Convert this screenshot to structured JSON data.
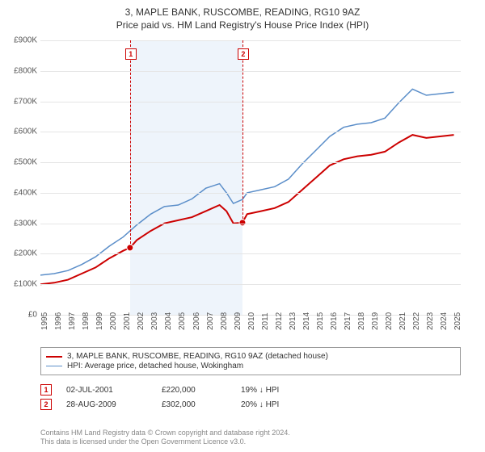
{
  "title": {
    "line1": "3, MAPLE BANK, RUSCOMBE, READING, RG10 9AZ",
    "line2": "Price paid vs. HM Land Registry's House Price Index (HPI)"
  },
  "chart": {
    "type": "line",
    "background_color": "#ffffff",
    "grid_color": "#e5e5e5",
    "highlight_band_color": "#eef4fb",
    "highlight_band_xstart": 2001.5,
    "highlight_band_xend": 2009.66,
    "xlim": [
      1995,
      2025.5
    ],
    "ylim": [
      0,
      900000
    ],
    "ytick_step": 100000,
    "ytick_labels": [
      "£0",
      "£100K",
      "£200K",
      "£300K",
      "£400K",
      "£500K",
      "£600K",
      "£700K",
      "£800K",
      "£900K"
    ],
    "xtick_years": [
      1995,
      1996,
      1997,
      1998,
      1999,
      2000,
      2001,
      2002,
      2003,
      2004,
      2005,
      2006,
      2007,
      2008,
      2009,
      2010,
      2011,
      2012,
      2013,
      2014,
      2015,
      2016,
      2017,
      2018,
      2019,
      2020,
      2021,
      2022,
      2023,
      2024,
      2025
    ],
    "label_fontsize": 10,
    "series": [
      {
        "name": "price_paid",
        "label": "3, MAPLE BANK, RUSCOMBE, READING, RG10 9AZ (detached house)",
        "color": "#cc0000",
        "line_width": 2,
        "data": [
          [
            1995.0,
            100000
          ],
          [
            1996.0,
            105000
          ],
          [
            1997.0,
            115000
          ],
          [
            1998.0,
            135000
          ],
          [
            1999.0,
            155000
          ],
          [
            2000.0,
            185000
          ],
          [
            2001.0,
            210000
          ],
          [
            2001.5,
            220000
          ],
          [
            2002.0,
            245000
          ],
          [
            2003.0,
            275000
          ],
          [
            2004.0,
            300000
          ],
          [
            2005.0,
            310000
          ],
          [
            2006.0,
            320000
          ],
          [
            2007.0,
            340000
          ],
          [
            2008.0,
            360000
          ],
          [
            2008.5,
            340000
          ],
          [
            2009.0,
            300000
          ],
          [
            2009.66,
            302000
          ],
          [
            2010.0,
            330000
          ],
          [
            2011.0,
            340000
          ],
          [
            2012.0,
            350000
          ],
          [
            2013.0,
            370000
          ],
          [
            2014.0,
            410000
          ],
          [
            2015.0,
            450000
          ],
          [
            2016.0,
            490000
          ],
          [
            2017.0,
            510000
          ],
          [
            2018.0,
            520000
          ],
          [
            2019.0,
            525000
          ],
          [
            2020.0,
            535000
          ],
          [
            2021.0,
            565000
          ],
          [
            2022.0,
            590000
          ],
          [
            2023.0,
            580000
          ],
          [
            2024.0,
            585000
          ],
          [
            2025.0,
            590000
          ]
        ]
      },
      {
        "name": "hpi",
        "label": "HPI: Average price, detached house, Wokingham",
        "color": "#5b8ec9",
        "line_width": 1.5,
        "data": [
          [
            1995.0,
            130000
          ],
          [
            1996.0,
            135000
          ],
          [
            1997.0,
            145000
          ],
          [
            1998.0,
            165000
          ],
          [
            1999.0,
            190000
          ],
          [
            2000.0,
            225000
          ],
          [
            2001.0,
            255000
          ],
          [
            2002.0,
            295000
          ],
          [
            2003.0,
            330000
          ],
          [
            2004.0,
            355000
          ],
          [
            2005.0,
            360000
          ],
          [
            2006.0,
            380000
          ],
          [
            2007.0,
            415000
          ],
          [
            2008.0,
            430000
          ],
          [
            2008.5,
            400000
          ],
          [
            2009.0,
            365000
          ],
          [
            2009.66,
            378000
          ],
          [
            2010.0,
            400000
          ],
          [
            2011.0,
            410000
          ],
          [
            2012.0,
            420000
          ],
          [
            2013.0,
            445000
          ],
          [
            2014.0,
            495000
          ],
          [
            2015.0,
            540000
          ],
          [
            2016.0,
            585000
          ],
          [
            2017.0,
            615000
          ],
          [
            2018.0,
            625000
          ],
          [
            2019.0,
            630000
          ],
          [
            2020.0,
            645000
          ],
          [
            2021.0,
            695000
          ],
          [
            2022.0,
            740000
          ],
          [
            2023.0,
            720000
          ],
          [
            2024.0,
            725000
          ],
          [
            2025.0,
            730000
          ]
        ]
      }
    ],
    "markers": [
      {
        "id": "1",
        "x": 2001.5,
        "y": 220000
      },
      {
        "id": "2",
        "x": 2009.66,
        "y": 302000
      }
    ]
  },
  "transactions": [
    {
      "id": "1",
      "date": "02-JUL-2001",
      "price": "£220,000",
      "diff": "19% ↓ HPI"
    },
    {
      "id": "2",
      "date": "28-AUG-2009",
      "price": "£302,000",
      "diff": "20% ↓ HPI"
    }
  ],
  "footer": {
    "line1": "Contains HM Land Registry data © Crown copyright and database right 2024.",
    "line2": "This data is licensed under the Open Government Licence v3.0."
  }
}
